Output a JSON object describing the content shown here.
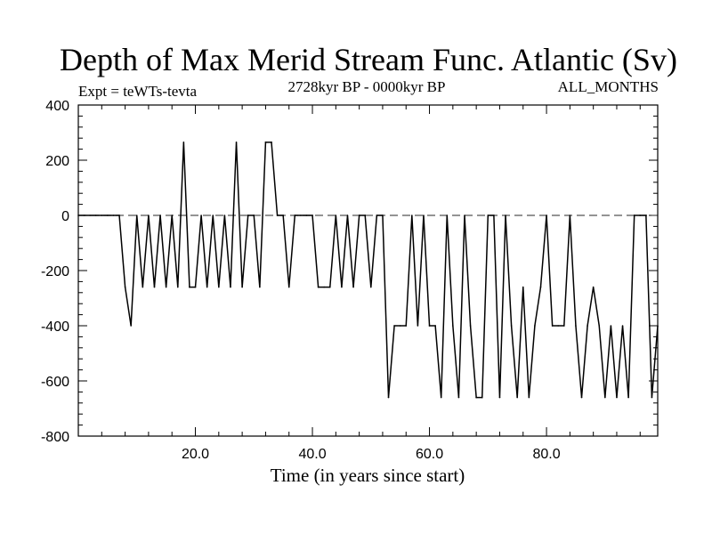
{
  "chart_data": {
    "type": "line",
    "title": "Depth of Max Merid Stream Func. Atlantic (Sv)",
    "subtitle_left": "Expt = teWTs-tevta",
    "subtitle_center": "2728kyr BP - 0000kyr BP",
    "subtitle_right": "ALL_MONTHS",
    "xlabel": "Time (in years since start)",
    "ylabel": "",
    "xlim": [
      0,
      99
    ],
    "ylim": [
      -800,
      400
    ],
    "xticks": [
      20,
      40,
      60,
      80
    ],
    "xtick_labels": [
      "20.0",
      "40.0",
      "60.0",
      "80.0"
    ],
    "yticks": [
      400,
      200,
      0,
      -200,
      -400,
      -600,
      -800
    ],
    "ytick_labels": [
      "400",
      "200",
      "0",
      "-200",
      "-400",
      "-600",
      "-800"
    ],
    "reference_line": {
      "y": 0,
      "style": "dashed"
    },
    "grid": false,
    "series": [
      {
        "name": "depth",
        "x": [
          0,
          1,
          2,
          3,
          4,
          5,
          6,
          7,
          8,
          9,
          10,
          11,
          12,
          13,
          14,
          15,
          16,
          17,
          18,
          19,
          20,
          21,
          22,
          23,
          24,
          25,
          26,
          27,
          28,
          29,
          30,
          31,
          32,
          33,
          34,
          35,
          36,
          37,
          38,
          39,
          40,
          41,
          42,
          43,
          44,
          45,
          46,
          47,
          48,
          49,
          50,
          51,
          52,
          53,
          54,
          55,
          56,
          57,
          58,
          59,
          60,
          61,
          62,
          63,
          64,
          65,
          66,
          67,
          68,
          69,
          70,
          71,
          72,
          73,
          74,
          75,
          76,
          77,
          78,
          79,
          80,
          81,
          82,
          83,
          84,
          85,
          86,
          87,
          88,
          89,
          90,
          91,
          92,
          93,
          94,
          95,
          96,
          97,
          98,
          99
        ],
        "values": [
          0,
          0,
          0,
          0,
          0,
          0,
          0,
          0,
          -260,
          -400,
          0,
          -260,
          0,
          -260,
          0,
          -260,
          0,
          -260,
          265,
          -260,
          -260,
          0,
          -260,
          0,
          -260,
          0,
          -260,
          265,
          -260,
          0,
          0,
          -260,
          265,
          265,
          0,
          0,
          -260,
          0,
          0,
          0,
          0,
          -260,
          -260,
          -260,
          0,
          -260,
          0,
          -260,
          0,
          0,
          -260,
          0,
          0,
          -660,
          -400,
          -400,
          -400,
          0,
          -400,
          0,
          -400,
          -400,
          -660,
          0,
          -400,
          -660,
          0,
          -400,
          -660,
          -660,
          0,
          0,
          -660,
          0,
          -400,
          -660,
          -260,
          -660,
          -400,
          -260,
          0,
          -400,
          -400,
          -400,
          0,
          -400,
          -660,
          -400,
          -260,
          -400,
          -660,
          -400,
          -660,
          -400,
          -660,
          0,
          0,
          0,
          -660,
          -400
        ]
      }
    ]
  }
}
